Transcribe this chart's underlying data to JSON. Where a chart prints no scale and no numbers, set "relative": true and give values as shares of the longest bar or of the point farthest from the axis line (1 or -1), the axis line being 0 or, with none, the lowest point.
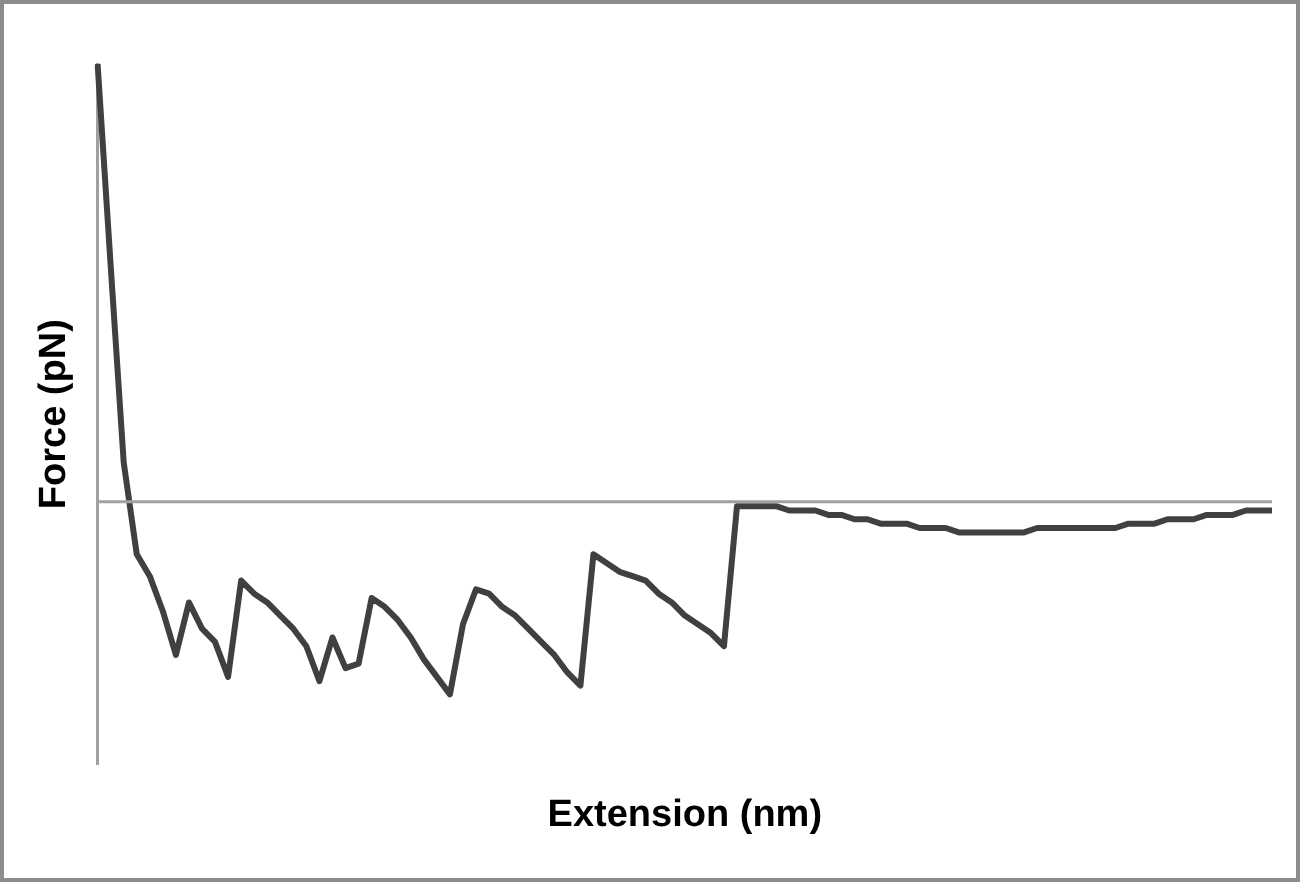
{
  "chart_data": {
    "type": "line",
    "relative": true,
    "xlabel": "Extension (nm)",
    "ylabel": "Force (pN)",
    "categories": [
      null,
      null,
      null,
      null,
      null,
      null,
      null,
      null,
      null,
      null,
      null,
      null,
      null,
      null,
      null,
      null,
      null,
      null,
      null,
      null,
      null,
      null,
      null,
      null,
      null,
      null,
      null,
      null,
      null,
      null,
      null,
      null,
      null,
      null,
      null,
      null,
      null,
      null,
      null,
      null,
      null,
      null,
      null,
      null,
      null,
      null,
      null,
      null,
      null,
      null,
      null,
      null,
      null,
      null,
      null,
      null,
      null,
      null,
      null,
      null,
      null,
      null,
      null,
      null,
      null,
      null,
      null,
      null,
      null,
      null,
      null,
      null,
      null,
      null,
      null,
      null,
      null,
      null,
      null,
      null,
      null,
      null,
      null,
      null,
      null,
      null,
      null,
      null,
      null,
      null,
      null
    ],
    "series": [
      {
        "color": "#404040",
        "values": [
          1.0,
          0.54,
          0.09,
          -0.12,
          -0.17,
          -0.25,
          -0.35,
          -0.23,
          -0.29,
          -0.32,
          -0.4,
          -0.18,
          -0.21,
          -0.23,
          -0.26,
          -0.29,
          -0.33,
          -0.41,
          -0.31,
          -0.38,
          -0.37,
          -0.22,
          -0.24,
          -0.27,
          -0.31,
          -0.36,
          -0.4,
          -0.44,
          -0.28,
          -0.2,
          -0.21,
          -0.24,
          -0.26,
          -0.29,
          -0.32,
          -0.35,
          -0.39,
          -0.42,
          -0.12,
          -0.14,
          -0.16,
          -0.17,
          -0.18,
          -0.21,
          -0.23,
          -0.26,
          -0.28,
          -0.3,
          -0.33,
          -0.01,
          -0.01,
          -0.01,
          -0.01,
          -0.02,
          -0.02,
          -0.02,
          -0.03,
          -0.03,
          -0.04,
          -0.04,
          -0.05,
          -0.05,
          -0.05,
          -0.06,
          -0.06,
          -0.06,
          -0.07,
          -0.07,
          -0.07,
          -0.07,
          -0.07,
          -0.07,
          -0.06,
          -0.06,
          -0.06,
          -0.06,
          -0.06,
          -0.06,
          -0.06,
          -0.05,
          -0.05,
          -0.05,
          -0.04,
          -0.04,
          -0.04,
          -0.03,
          -0.03,
          -0.03,
          -0.02,
          -0.02,
          -0.02
        ]
      }
    ],
    "marker": "none",
    "line_style": "solid",
    "grid": false,
    "legend": false
  }
}
